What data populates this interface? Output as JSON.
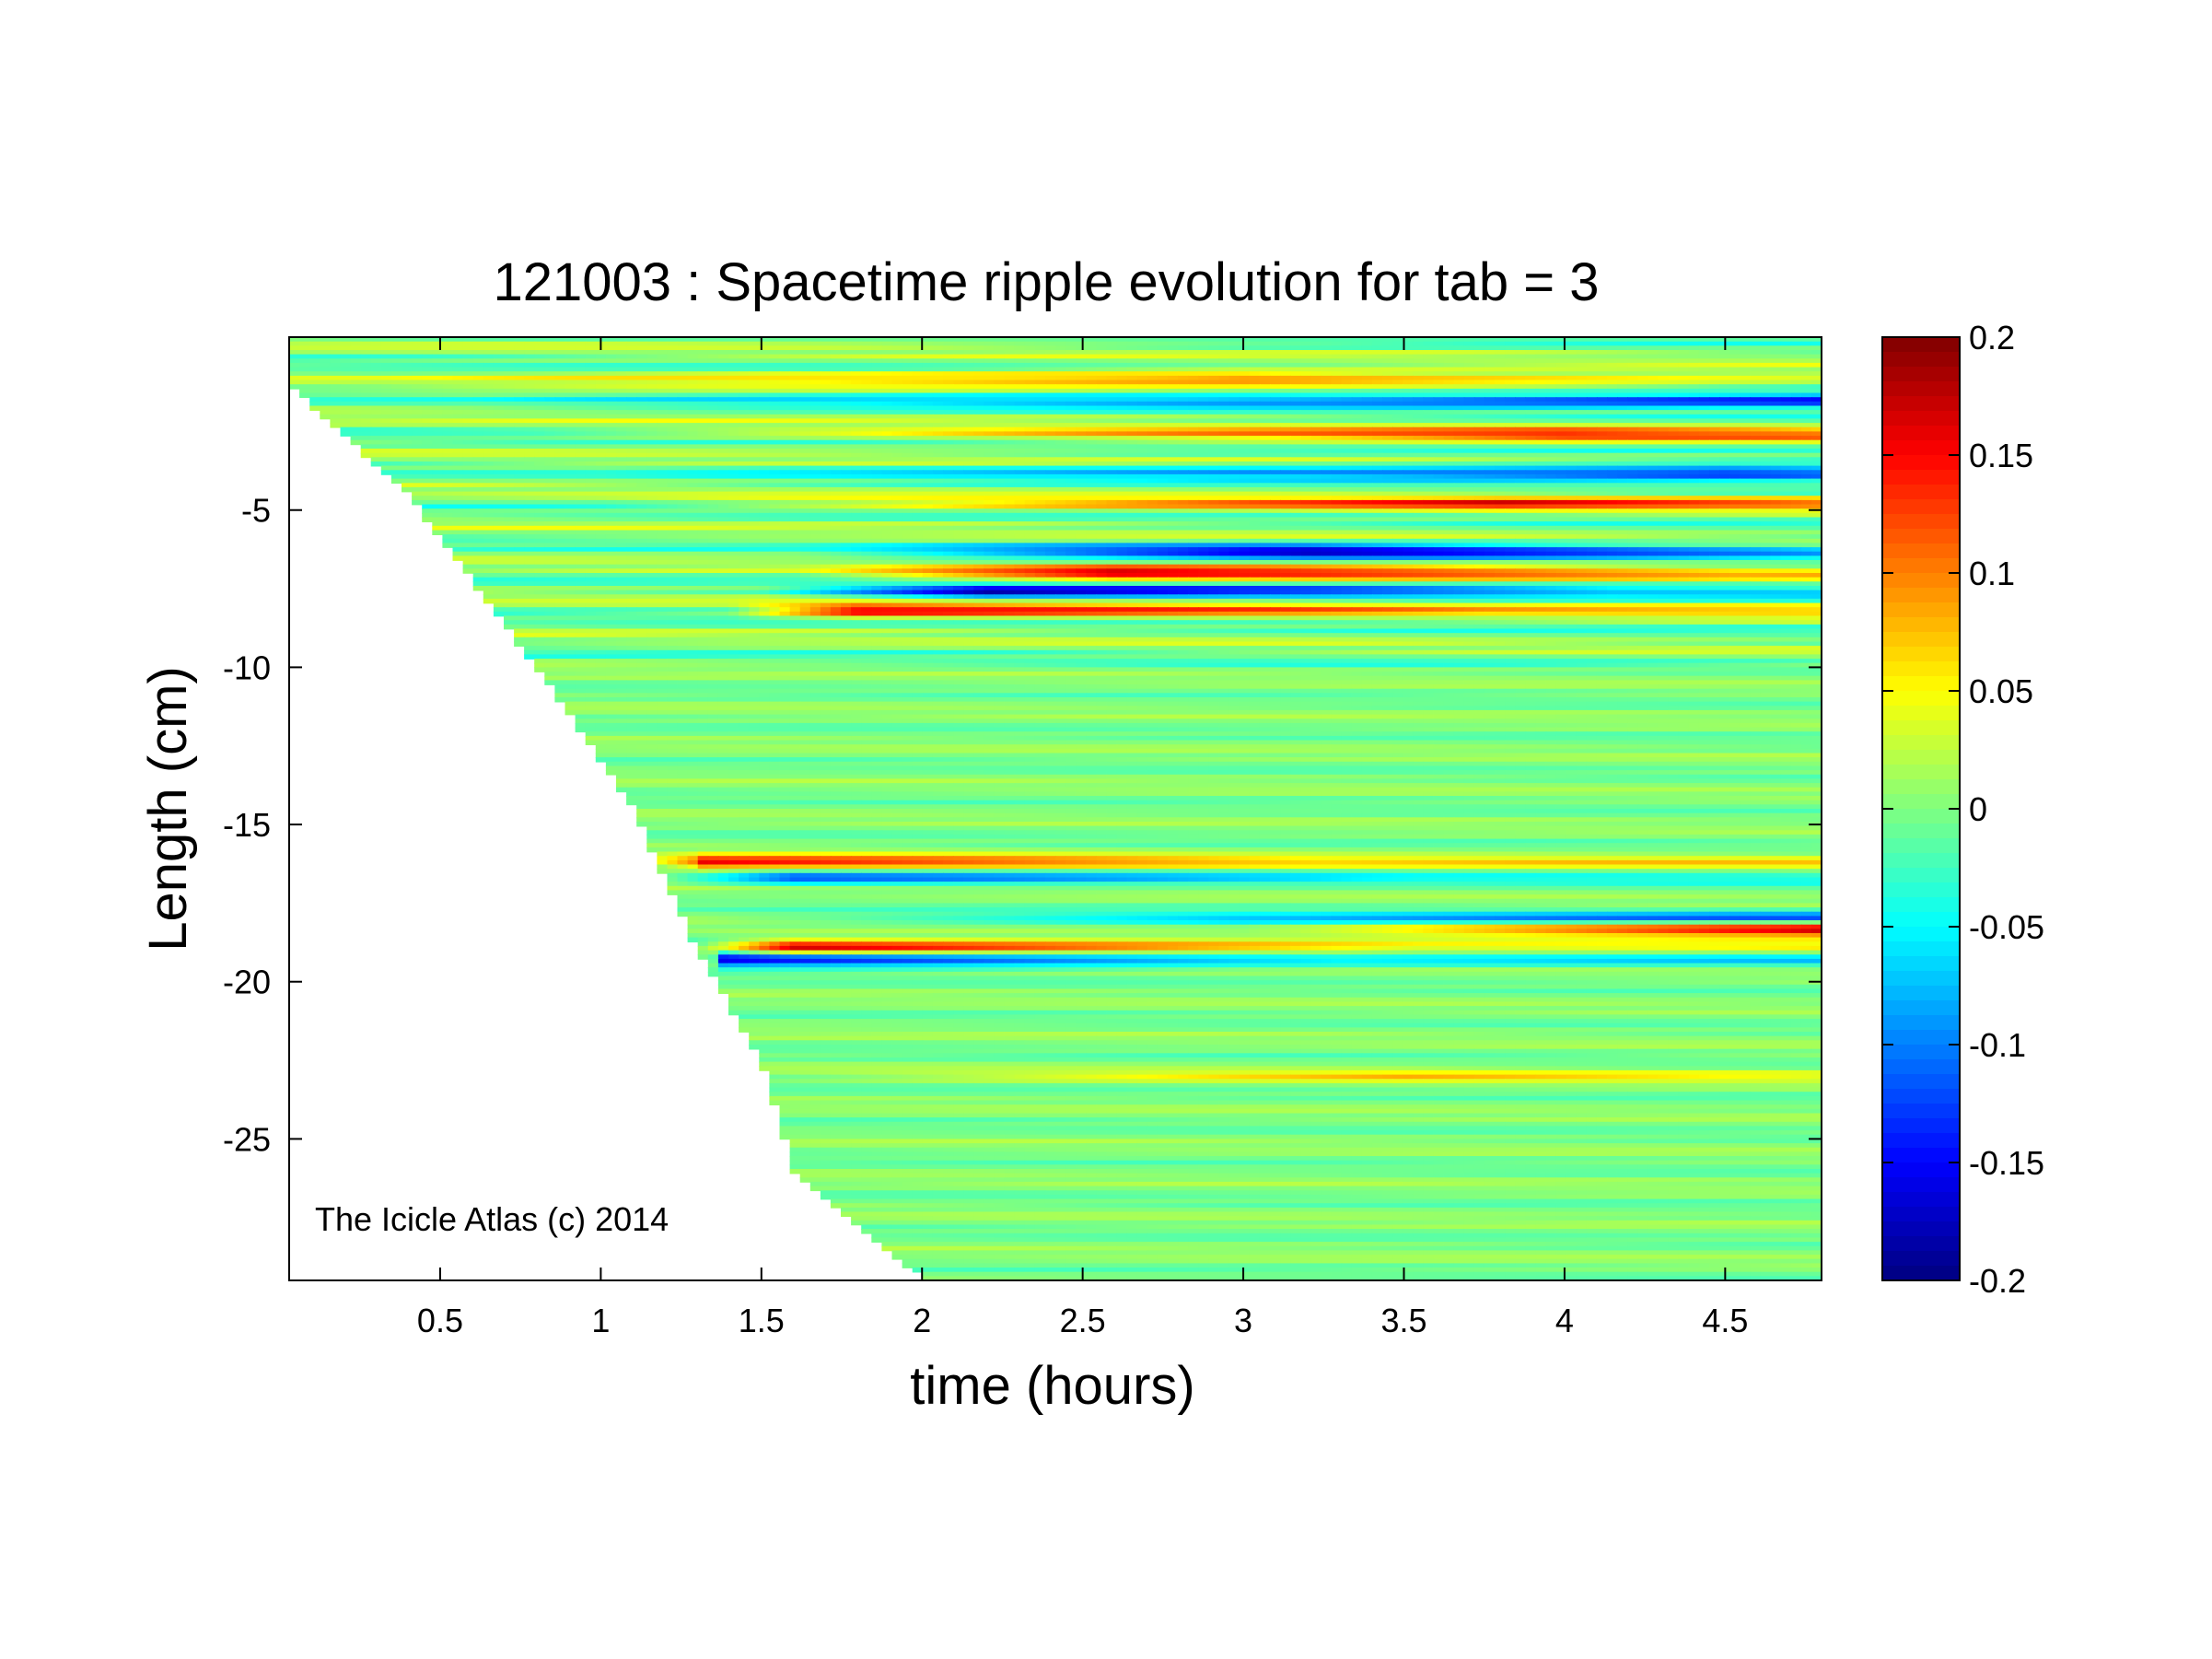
{
  "chart_data": {
    "type": "heatmap",
    "title": "121003 : Spacetime ripple evolution for tab = 3",
    "xlabel": "time (hours)",
    "ylabel": "Length (cm)",
    "xlim": [
      0.03,
      4.8
    ],
    "ylim": [
      -29.5,
      0.5
    ],
    "xticks": [
      0.5,
      1,
      1.5,
      2,
      2.5,
      3,
      3.5,
      4,
      4.5
    ],
    "xtick_labels": [
      "0.5",
      "1",
      "1.5",
      "2",
      "2.5",
      "3",
      "3.5",
      "4",
      "4.5"
    ],
    "yticks": [
      -5,
      -10,
      -15,
      -20,
      -25
    ],
    "ytick_labels": [
      "-5",
      "-10",
      "-15",
      "-20",
      "-25"
    ],
    "colorbar": {
      "colormap": "jet",
      "range": [
        -0.2,
        0.2
      ],
      "ticks": [
        0.2,
        0.15,
        0.1,
        0.05,
        0,
        -0.05,
        -0.1,
        -0.15,
        -0.2
      ],
      "tick_labels": [
        "0.2",
        "0.15",
        "0.1",
        "0.05",
        "0",
        "-0.05",
        "-0.1",
        "-0.15",
        "-0.2"
      ]
    },
    "growth_front": {
      "description_points_time_hours": [
        0.03,
        0.4,
        0.8,
        1.1,
        1.3,
        1.5,
        1.6,
        1.9,
        2.0
      ],
      "description_points_length_cm": [
        -1.0,
        -4.5,
        -10.0,
        -14.5,
        -19.0,
        -22.5,
        -26.0,
        -28.7,
        -29.3
      ]
    },
    "ridges": [
      {
        "length_cm": -0.8,
        "start_h": 0.3,
        "peak_h": 3.0,
        "amplitude": 0.12
      },
      {
        "length_cm": -1.5,
        "start_h": 0.6,
        "peak_h": 4.8,
        "amplitude": -0.17
      },
      {
        "length_cm": -2.6,
        "start_h": 0.8,
        "peak_h": 4.0,
        "amplitude": 0.13
      },
      {
        "length_cm": -3.8,
        "start_h": 1.0,
        "peak_h": 4.5,
        "amplitude": -0.16
      },
      {
        "length_cm": -4.8,
        "start_h": 1.0,
        "peak_h": 3.8,
        "amplitude": 0.13
      },
      {
        "length_cm": -6.3,
        "start_h": 1.6,
        "peak_h": 3.2,
        "amplitude": -0.17
      },
      {
        "length_cm": -7.0,
        "start_h": 1.6,
        "peak_h": 2.6,
        "amplitude": 0.16
      },
      {
        "length_cm": -7.6,
        "start_h": 1.5,
        "peak_h": 2.2,
        "amplitude": -0.16
      },
      {
        "length_cm": -8.2,
        "start_h": 1.4,
        "peak_h": 1.8,
        "amplitude": 0.16
      },
      {
        "length_cm": -16.2,
        "start_h": 1.1,
        "peak_h": 1.3,
        "amplitude": 0.16
      },
      {
        "length_cm": -16.7,
        "start_h": 1.2,
        "peak_h": 1.6,
        "amplitude": -0.11
      },
      {
        "length_cm": -18.0,
        "start_h": 1.3,
        "peak_h": 4.8,
        "amplitude": -0.13
      },
      {
        "length_cm": -18.3,
        "start_h": 3.0,
        "peak_h": 4.8,
        "amplitude": 0.2
      },
      {
        "length_cm": -18.9,
        "start_h": 1.3,
        "peak_h": 1.6,
        "amplitude": 0.18
      },
      {
        "length_cm": -19.3,
        "start_h": 1.3,
        "peak_h": 1.35,
        "amplitude": -0.18
      },
      {
        "length_cm": -23.0,
        "start_h": 1.5,
        "peak_h": 3.5,
        "amplitude": 0.06
      }
    ],
    "annotations": [
      "The Icicle Atlas (c) 2014"
    ]
  }
}
